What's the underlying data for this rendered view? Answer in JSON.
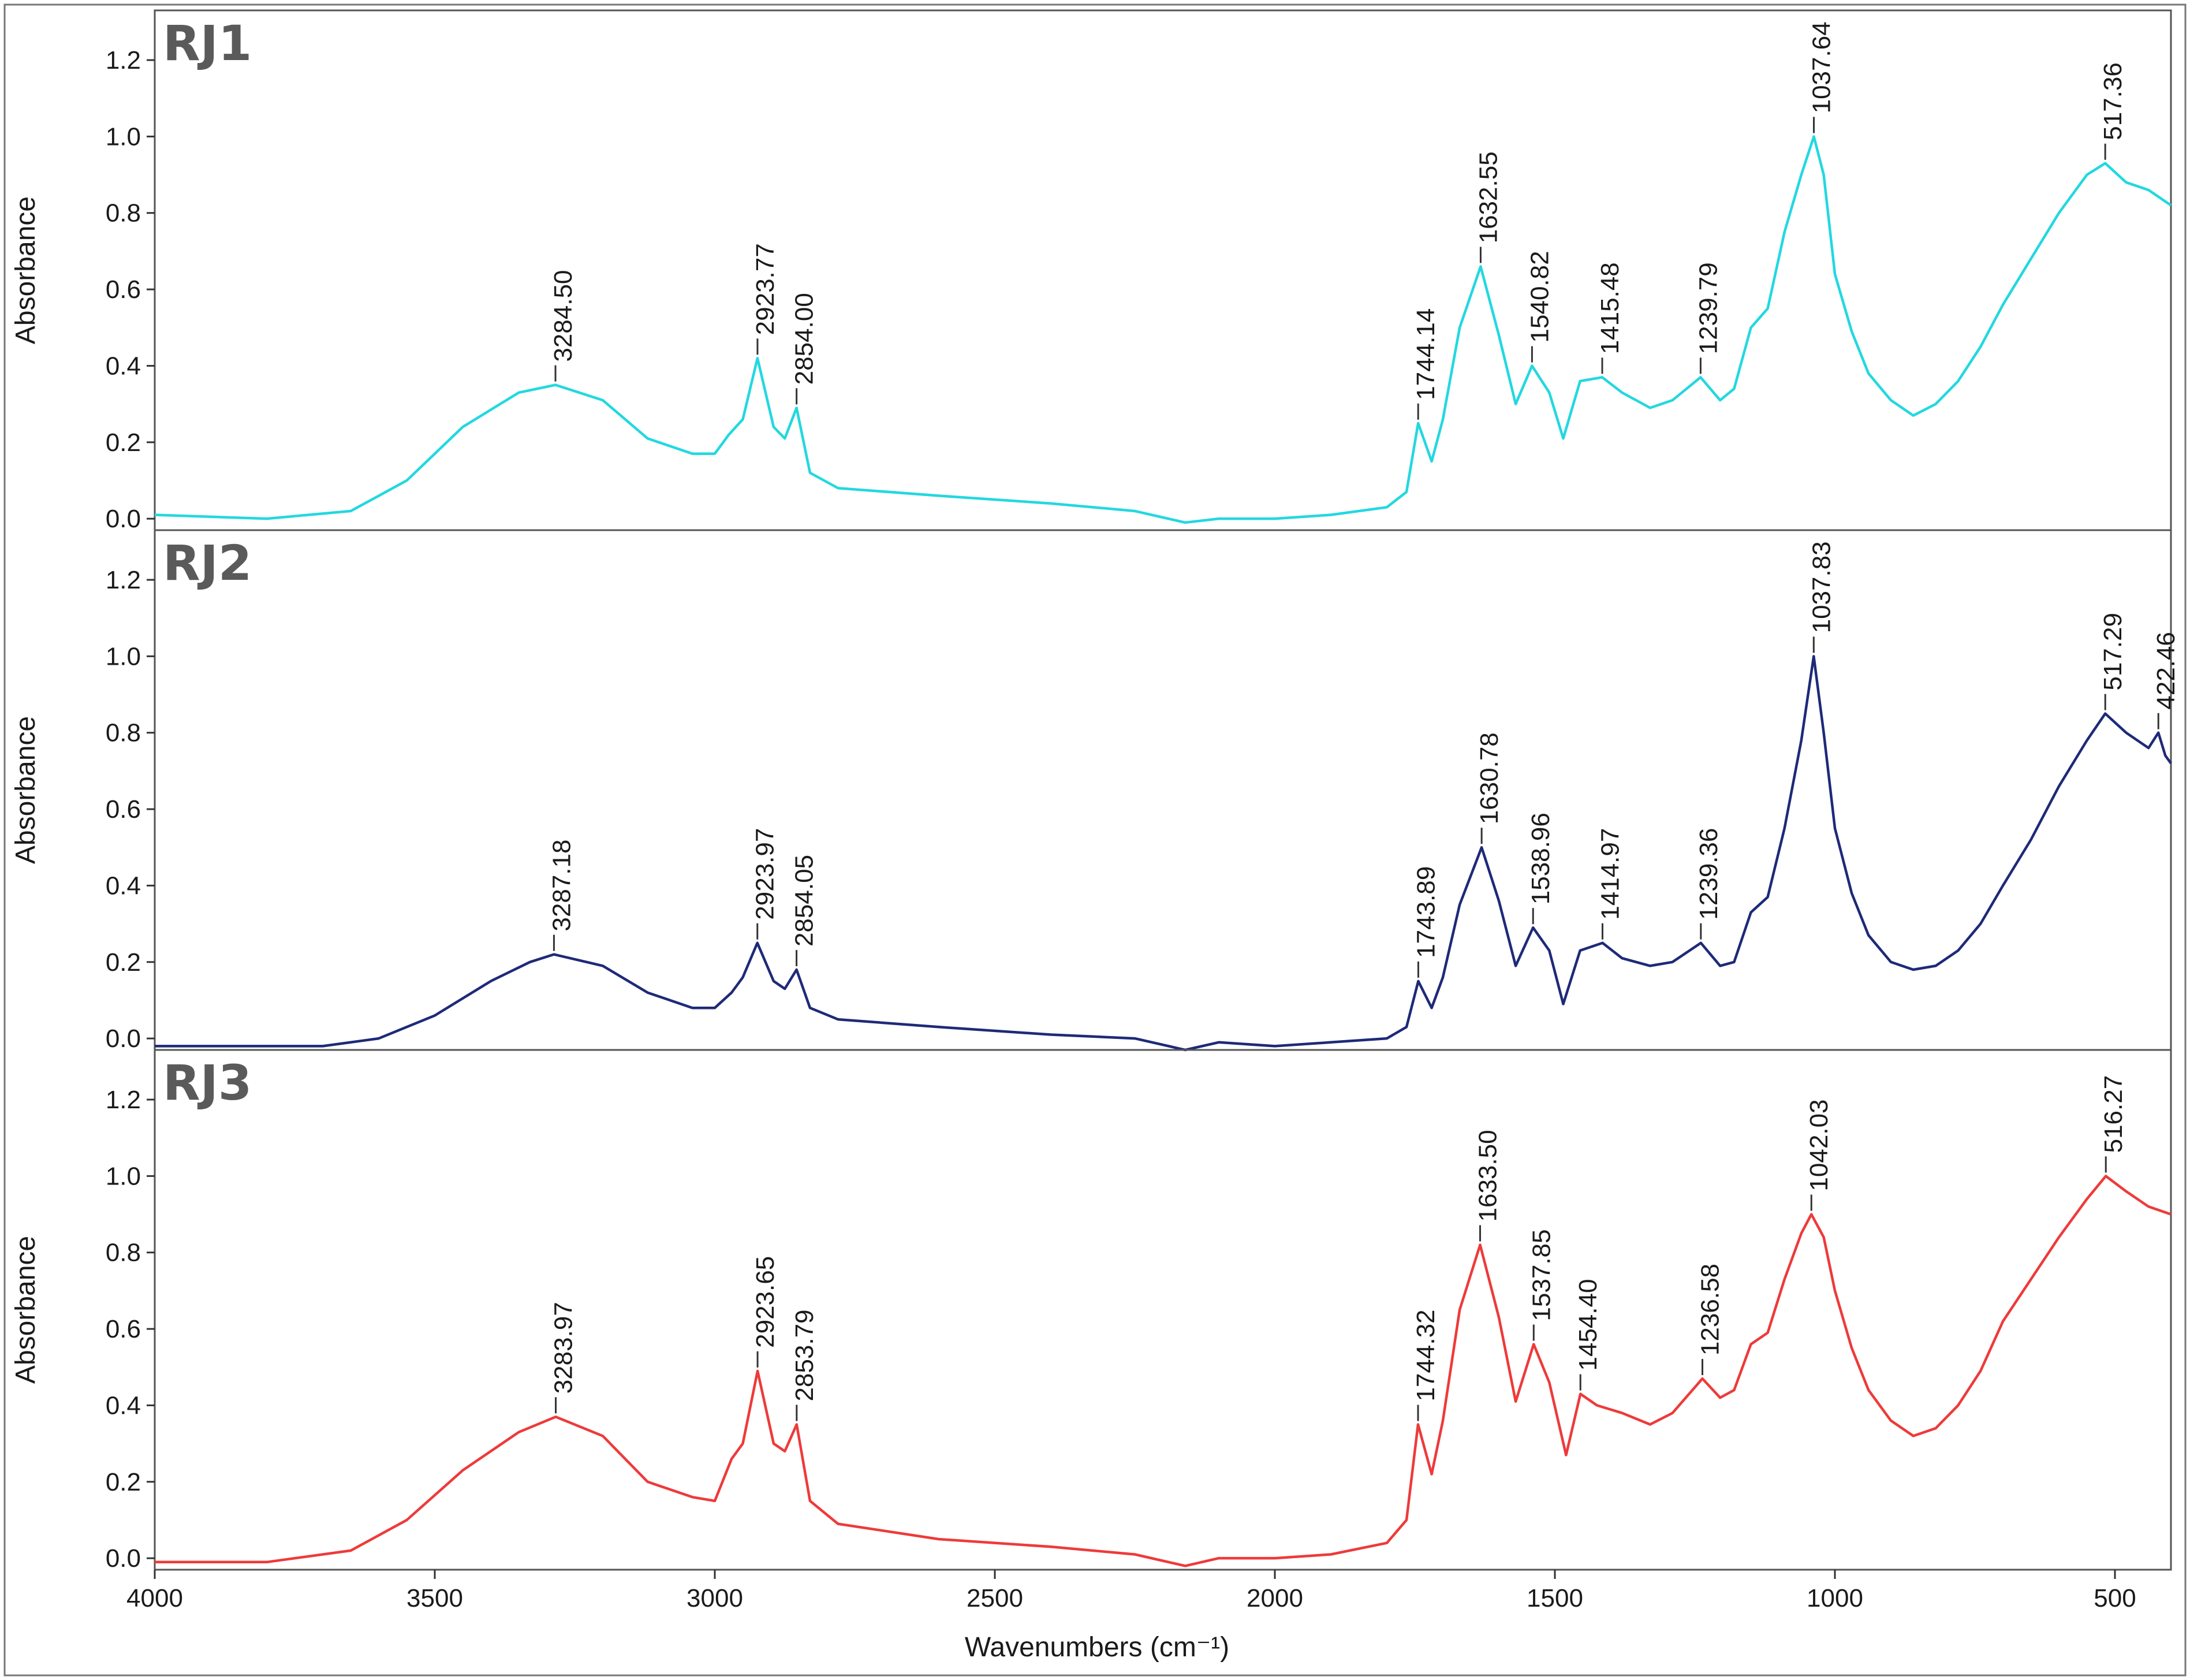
{
  "chart_data": {
    "type": "line",
    "title": "",
    "xlabel": "Wavenumbers (cm⁻¹)",
    "ylabel": "Absorbance",
    "xlim": [
      4000,
      400
    ],
    "x_ticks": [
      4000,
      3500,
      3000,
      2500,
      2000,
      1500,
      1000,
      500
    ],
    "ylim": [
      -0.03,
      1.33
    ],
    "y_ticks": [
      "0.0",
      "0.2",
      "0.4",
      "0.6",
      "0.8",
      "1.0",
      "1.2"
    ],
    "panels": [
      {
        "label": "RJ1",
        "color": "#22d8e0",
        "points": [
          [
            4000,
            0.01
          ],
          [
            3800,
            0.0
          ],
          [
            3650,
            0.02
          ],
          [
            3550,
            0.1
          ],
          [
            3450,
            0.24
          ],
          [
            3350,
            0.33
          ],
          [
            3284.5,
            0.35
          ],
          [
            3200,
            0.31
          ],
          [
            3120,
            0.21
          ],
          [
            3040,
            0.17
          ],
          [
            3000,
            0.17
          ],
          [
            2975,
            0.22
          ],
          [
            2950,
            0.26
          ],
          [
            2923.77,
            0.42
          ],
          [
            2895,
            0.24
          ],
          [
            2875,
            0.21
          ],
          [
            2854.0,
            0.29
          ],
          [
            2830,
            0.12
          ],
          [
            2780,
            0.08
          ],
          [
            2600,
            0.06
          ],
          [
            2400,
            0.04
          ],
          [
            2250,
            0.02
          ],
          [
            2160,
            -0.01
          ],
          [
            2100,
            0.0
          ],
          [
            2000,
            0.0
          ],
          [
            1900,
            0.01
          ],
          [
            1800,
            0.03
          ],
          [
            1765,
            0.07
          ],
          [
            1744.14,
            0.25
          ],
          [
            1720,
            0.15
          ],
          [
            1700,
            0.26
          ],
          [
            1670,
            0.5
          ],
          [
            1632.55,
            0.66
          ],
          [
            1600,
            0.48
          ],
          [
            1570,
            0.3
          ],
          [
            1540.82,
            0.4
          ],
          [
            1510,
            0.33
          ],
          [
            1485,
            0.21
          ],
          [
            1455,
            0.36
          ],
          [
            1415.48,
            0.37
          ],
          [
            1380,
            0.33
          ],
          [
            1330,
            0.29
          ],
          [
            1290,
            0.31
          ],
          [
            1239.79,
            0.37
          ],
          [
            1205,
            0.31
          ],
          [
            1180,
            0.34
          ],
          [
            1150,
            0.5
          ],
          [
            1120,
            0.55
          ],
          [
            1090,
            0.75
          ],
          [
            1060,
            0.9
          ],
          [
            1037.64,
            1.0
          ],
          [
            1020,
            0.9
          ],
          [
            1000,
            0.64
          ],
          [
            970,
            0.49
          ],
          [
            940,
            0.38
          ],
          [
            900,
            0.31
          ],
          [
            860,
            0.27
          ],
          [
            820,
            0.3
          ],
          [
            780,
            0.36
          ],
          [
            740,
            0.45
          ],
          [
            700,
            0.56
          ],
          [
            650,
            0.68
          ],
          [
            600,
            0.8
          ],
          [
            550,
            0.9
          ],
          [
            517.36,
            0.93
          ],
          [
            480,
            0.88
          ],
          [
            440,
            0.86
          ],
          [
            400,
            0.82
          ]
        ],
        "peaks": [
          {
            "x": 3284.5,
            "y": 0.35,
            "label": "3284.50"
          },
          {
            "x": 2923.77,
            "y": 0.42,
            "label": "2923.77"
          },
          {
            "x": 2854.0,
            "y": 0.29,
            "label": "2854.00"
          },
          {
            "x": 1744.14,
            "y": 0.25,
            "label": "1744.14"
          },
          {
            "x": 1632.55,
            "y": 0.66,
            "label": "1632.55"
          },
          {
            "x": 1540.82,
            "y": 0.4,
            "label": "1540.82"
          },
          {
            "x": 1415.48,
            "y": 0.37,
            "label": "1415.48"
          },
          {
            "x": 1239.79,
            "y": 0.37,
            "label": "1239.79"
          },
          {
            "x": 1037.64,
            "y": 1.0,
            "label": "1037.64"
          },
          {
            "x": 517.36,
            "y": 0.93,
            "label": "517.36"
          }
        ]
      },
      {
        "label": "RJ2",
        "color": "#1e2a78",
        "points": [
          [
            4000,
            -0.02
          ],
          [
            3700,
            -0.02
          ],
          [
            3600,
            0.0
          ],
          [
            3500,
            0.06
          ],
          [
            3400,
            0.15
          ],
          [
            3330,
            0.2
          ],
          [
            3287.18,
            0.22
          ],
          [
            3200,
            0.19
          ],
          [
            3120,
            0.12
          ],
          [
            3040,
            0.08
          ],
          [
            3000,
            0.08
          ],
          [
            2970,
            0.12
          ],
          [
            2950,
            0.16
          ],
          [
            2923.97,
            0.25
          ],
          [
            2895,
            0.15
          ],
          [
            2875,
            0.13
          ],
          [
            2854.05,
            0.18
          ],
          [
            2830,
            0.08
          ],
          [
            2780,
            0.05
          ],
          [
            2600,
            0.03
          ],
          [
            2400,
            0.01
          ],
          [
            2250,
            0.0
          ],
          [
            2160,
            -0.03
          ],
          [
            2100,
            -0.01
          ],
          [
            2000,
            -0.02
          ],
          [
            1900,
            -0.01
          ],
          [
            1800,
            0.0
          ],
          [
            1765,
            0.03
          ],
          [
            1743.89,
            0.15
          ],
          [
            1720,
            0.08
          ],
          [
            1700,
            0.16
          ],
          [
            1670,
            0.35
          ],
          [
            1630.78,
            0.5
          ],
          [
            1600,
            0.36
          ],
          [
            1570,
            0.19
          ],
          [
            1538.96,
            0.29
          ],
          [
            1510,
            0.23
          ],
          [
            1485,
            0.09
          ],
          [
            1455,
            0.23
          ],
          [
            1414.97,
            0.25
          ],
          [
            1380,
            0.21
          ],
          [
            1330,
            0.19
          ],
          [
            1290,
            0.2
          ],
          [
            1239.36,
            0.25
          ],
          [
            1205,
            0.19
          ],
          [
            1180,
            0.2
          ],
          [
            1150,
            0.33
          ],
          [
            1120,
            0.37
          ],
          [
            1090,
            0.55
          ],
          [
            1060,
            0.78
          ],
          [
            1037.83,
            1.0
          ],
          [
            1020,
            0.8
          ],
          [
            1000,
            0.55
          ],
          [
            970,
            0.38
          ],
          [
            940,
            0.27
          ],
          [
            900,
            0.2
          ],
          [
            860,
            0.18
          ],
          [
            820,
            0.19
          ],
          [
            780,
            0.23
          ],
          [
            740,
            0.3
          ],
          [
            700,
            0.4
          ],
          [
            650,
            0.52
          ],
          [
            600,
            0.66
          ],
          [
            550,
            0.78
          ],
          [
            517.29,
            0.85
          ],
          [
            480,
            0.8
          ],
          [
            440,
            0.76
          ],
          [
            422.46,
            0.8
          ],
          [
            410,
            0.74
          ],
          [
            400,
            0.72
          ]
        ],
        "peaks": [
          {
            "x": 3287.18,
            "y": 0.22,
            "label": "3287.18"
          },
          {
            "x": 2923.97,
            "y": 0.25,
            "label": "2923.97"
          },
          {
            "x": 2854.05,
            "y": 0.18,
            "label": "2854.05"
          },
          {
            "x": 1743.89,
            "y": 0.15,
            "label": "1743.89"
          },
          {
            "x": 1630.78,
            "y": 0.5,
            "label": "1630.78"
          },
          {
            "x": 1538.96,
            "y": 0.29,
            "label": "1538.96"
          },
          {
            "x": 1414.97,
            "y": 0.25,
            "label": "1414.97"
          },
          {
            "x": 1239.36,
            "y": 0.25,
            "label": "1239.36"
          },
          {
            "x": 1037.83,
            "y": 1.0,
            "label": "1037.83"
          },
          {
            "x": 517.29,
            "y": 0.85,
            "label": "517.29"
          },
          {
            "x": 422.46,
            "y": 0.8,
            "label": "422.46"
          }
        ]
      },
      {
        "label": "RJ3",
        "color": "#ee3a3a",
        "points": [
          [
            4000,
            -0.01
          ],
          [
            3800,
            -0.01
          ],
          [
            3650,
            0.02
          ],
          [
            3550,
            0.1
          ],
          [
            3450,
            0.23
          ],
          [
            3350,
            0.33
          ],
          [
            3283.97,
            0.37
          ],
          [
            3200,
            0.32
          ],
          [
            3120,
            0.2
          ],
          [
            3040,
            0.16
          ],
          [
            3000,
            0.15
          ],
          [
            2970,
            0.26
          ],
          [
            2950,
            0.3
          ],
          [
            2923.65,
            0.49
          ],
          [
            2895,
            0.3
          ],
          [
            2875,
            0.28
          ],
          [
            2853.79,
            0.35
          ],
          [
            2830,
            0.15
          ],
          [
            2780,
            0.09
          ],
          [
            2600,
            0.05
          ],
          [
            2400,
            0.03
          ],
          [
            2250,
            0.01
          ],
          [
            2160,
            -0.02
          ],
          [
            2100,
            0.0
          ],
          [
            2000,
            0.0
          ],
          [
            1900,
            0.01
          ],
          [
            1800,
            0.04
          ],
          [
            1765,
            0.1
          ],
          [
            1744.32,
            0.35
          ],
          [
            1720,
            0.22
          ],
          [
            1700,
            0.36
          ],
          [
            1670,
            0.65
          ],
          [
            1633.5,
            0.82
          ],
          [
            1600,
            0.63
          ],
          [
            1570,
            0.41
          ],
          [
            1537.85,
            0.56
          ],
          [
            1510,
            0.46
          ],
          [
            1480,
            0.27
          ],
          [
            1454.4,
            0.43
          ],
          [
            1425,
            0.4
          ],
          [
            1380,
            0.38
          ],
          [
            1330,
            0.35
          ],
          [
            1290,
            0.38
          ],
          [
            1236.58,
            0.47
          ],
          [
            1205,
            0.42
          ],
          [
            1180,
            0.44
          ],
          [
            1150,
            0.56
          ],
          [
            1120,
            0.59
          ],
          [
            1090,
            0.73
          ],
          [
            1060,
            0.85
          ],
          [
            1042.03,
            0.9
          ],
          [
            1020,
            0.84
          ],
          [
            1000,
            0.7
          ],
          [
            970,
            0.55
          ],
          [
            940,
            0.44
          ],
          [
            900,
            0.36
          ],
          [
            860,
            0.32
          ],
          [
            820,
            0.34
          ],
          [
            780,
            0.4
          ],
          [
            740,
            0.49
          ],
          [
            700,
            0.62
          ],
          [
            650,
            0.73
          ],
          [
            600,
            0.84
          ],
          [
            550,
            0.94
          ],
          [
            516.27,
            1.0
          ],
          [
            480,
            0.96
          ],
          [
            440,
            0.92
          ],
          [
            400,
            0.9
          ]
        ],
        "peaks": [
          {
            "x": 3283.97,
            "y": 0.37,
            "label": "3283.97"
          },
          {
            "x": 2923.65,
            "y": 0.49,
            "label": "2923.65"
          },
          {
            "x": 2853.79,
            "y": 0.35,
            "label": "2853.79"
          },
          {
            "x": 1744.32,
            "y": 0.35,
            "label": "1744.32"
          },
          {
            "x": 1633.5,
            "y": 0.82,
            "label": "1633.50"
          },
          {
            "x": 1537.85,
            "y": 0.56,
            "label": "1537.85"
          },
          {
            "x": 1454.4,
            "y": 0.43,
            "label": "1454.40"
          },
          {
            "x": 1236.58,
            "y": 0.47,
            "label": "1236.58"
          },
          {
            "x": 1042.03,
            "y": 0.9,
            "label": "1042.03"
          },
          {
            "x": 516.27,
            "y": 1.0,
            "label": "516.27"
          }
        ]
      }
    ]
  }
}
